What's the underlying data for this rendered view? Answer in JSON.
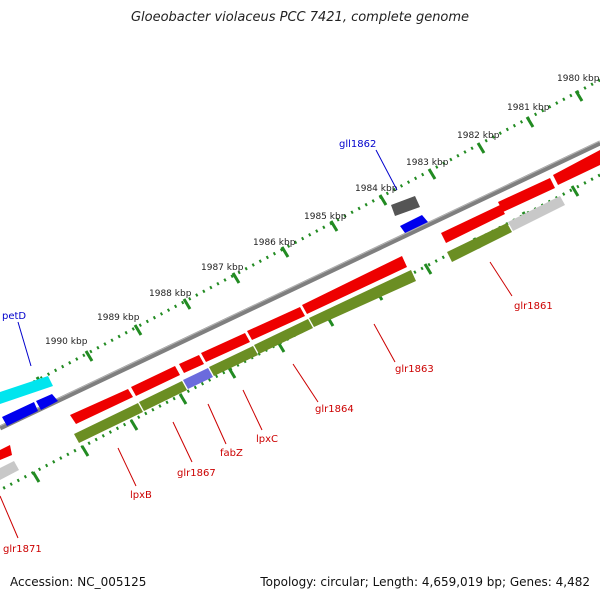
{
  "title": "Gloeobacter violaceus PCC 7421, complete genome",
  "footer": {
    "accession": "Accession: NC_005125",
    "summary": "Topology: circular; Length: 4,659,019 bp; Genes: 4,482"
  },
  "ruler": {
    "tick_labels": [
      "1980 kbp",
      "1981 kbp",
      "1982 kbp",
      "1983 kbp",
      "1984 kbp",
      "1985 kbp",
      "1986 kbp",
      "1987 kbp",
      "1988 kbp",
      "1989 kbp",
      "1990 kbp"
    ]
  },
  "gene_labels": [
    {
      "id": "gll1862",
      "text": "gll1862",
      "color": "#0000cc"
    },
    {
      "id": "petD",
      "text": "petD",
      "color": "#0000cc"
    },
    {
      "id": "glr1861",
      "text": "glr1861",
      "color": "#cc0000"
    },
    {
      "id": "glr1863",
      "text": "glr1863",
      "color": "#cc0000"
    },
    {
      "id": "glr1864",
      "text": "glr1864",
      "color": "#cc0000"
    },
    {
      "id": "lpxC",
      "text": "lpxC",
      "color": "#cc0000"
    },
    {
      "id": "fabZ",
      "text": "fabZ",
      "color": "#cc0000"
    },
    {
      "id": "glr1867",
      "text": "glr1867",
      "color": "#cc0000"
    },
    {
      "id": "lpxB",
      "text": "lpxB",
      "color": "#cc0000"
    },
    {
      "id": "glr1871",
      "text": "glr1871",
      "color": "#cc0000"
    }
  ],
  "colors": {
    "backbone": "#7f7f7f",
    "cds_forward": "#ff0000",
    "cds_reverse": "#0000ee",
    "gene_track": "#6b8e23",
    "tick": "#228b22"
  }
}
